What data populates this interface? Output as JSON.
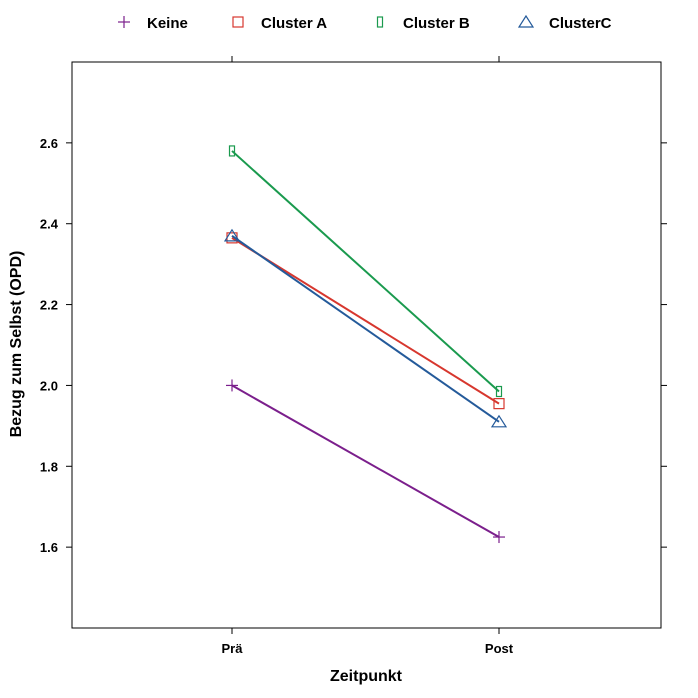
{
  "chart_data": {
    "type": "line",
    "categories": [
      "Prä",
      "Post"
    ],
    "xlabel": "Zeitpunkt",
    "ylabel": "Bezug zum Selbst (OPD)",
    "ylim": [
      1.4,
      2.8
    ],
    "yticks": [
      "1.6",
      "1.8",
      "2.0",
      "2.2",
      "2.4",
      "2.6"
    ],
    "grid": false,
    "legend_position": "top",
    "series": [
      {
        "name": "Keine",
        "values": [
          2.0,
          1.625
        ],
        "color": "#7b1f8c",
        "marker": "plus"
      },
      {
        "name": "Cluster A",
        "values": [
          2.365,
          1.955
        ],
        "color": "#d7372e",
        "marker": "square"
      },
      {
        "name": "Cluster B",
        "values": [
          2.58,
          1.985
        ],
        "color": "#1a9a4e",
        "marker": "narrow-rect"
      },
      {
        "name": "ClusterC",
        "values": [
          2.37,
          1.91
        ],
        "color": "#245a9a",
        "marker": "triangle"
      }
    ]
  }
}
